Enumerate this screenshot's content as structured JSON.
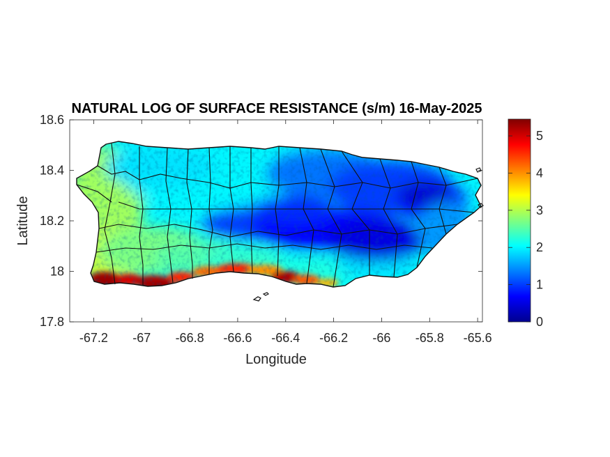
{
  "figure": {
    "title": "NATURAL LOG OF SURFACE RESISTANCE (s/m) 16-May-2025",
    "xlabel": "Longitude",
    "ylabel": "Latitude",
    "xlim": [
      -67.3,
      -65.58
    ],
    "ylim": [
      17.8,
      18.6
    ],
    "xticks": [
      -67.2,
      -67,
      -66.8,
      -66.6,
      -66.4,
      -66.2,
      -66,
      -65.8,
      -65.6
    ],
    "xtick_labels": [
      "-67.2",
      "-67",
      "-66.8",
      "-66.6",
      "-66.4",
      "-66.2",
      "-66",
      "-65.8",
      "-65.6"
    ],
    "yticks": [
      17.8,
      18,
      18.2,
      18.4,
      18.6
    ],
    "ytick_labels": [
      "17.8",
      "18",
      "18.2",
      "18.4",
      "18.6"
    ],
    "grid": false
  },
  "colorbar": {
    "colormap": "jet",
    "limits": [
      0,
      5.45
    ],
    "ticks": [
      0,
      1,
      2,
      3,
      4,
      5
    ],
    "tick_labels": [
      "0",
      "1",
      "2",
      "3",
      "4",
      "5"
    ],
    "placement": "right"
  },
  "map": {
    "region": "Puerto Rico",
    "boundaries": "municipality outlines",
    "value_pattern": {
      "south_coast": "high (4-5.4)",
      "west_and_southwest": "medium (2.5-3.5)",
      "north_and_west_interior": "about 2",
      "central_and_east_interior": "low (0.3-1.2)"
    }
  }
}
